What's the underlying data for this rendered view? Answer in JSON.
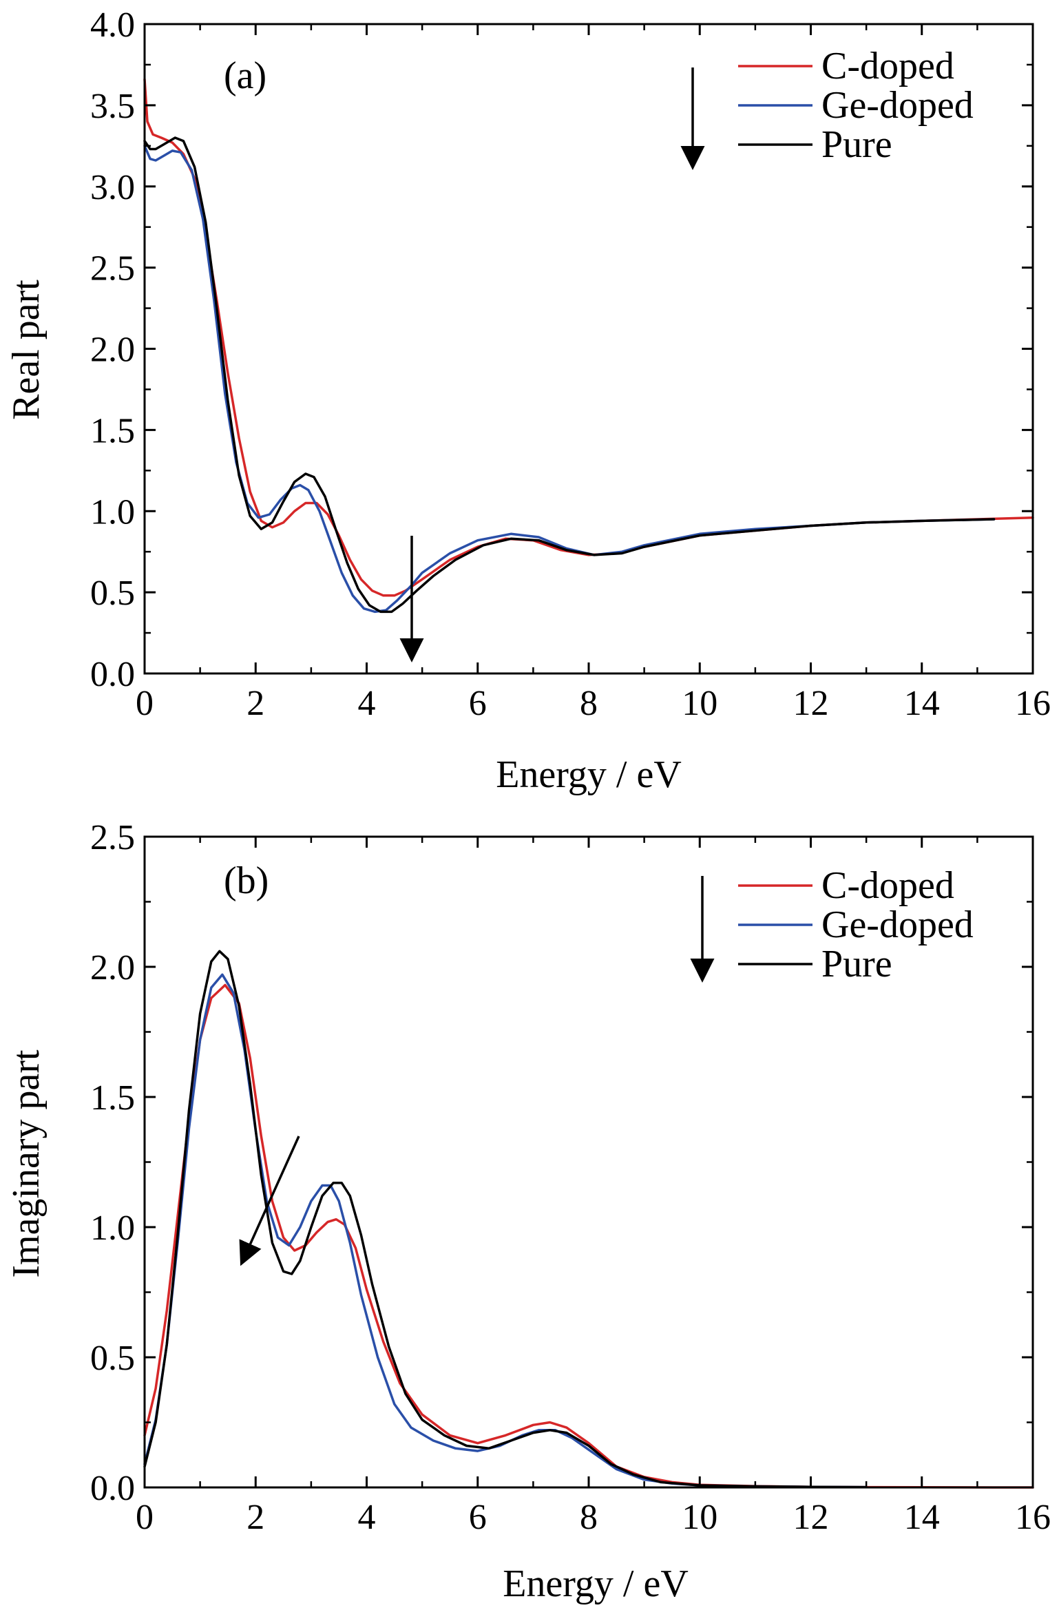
{
  "colors": {
    "c_doped": "#d62728",
    "ge_doped": "#2a4fa8",
    "pure": "#000000"
  },
  "chart_data": [
    {
      "type": "line",
      "panel_label": "(a)",
      "xlabel": "Energy / eV",
      "ylabel": "Real part",
      "xlim": [
        0,
        16
      ],
      "ylim": [
        0,
        4.0
      ],
      "x_ticks": [
        "0",
        "2",
        "4",
        "6",
        "8",
        "10",
        "12",
        "14",
        "16"
      ],
      "y_ticks": [
        "0.0",
        "0.5",
        "1.0",
        "1.5",
        "2.0",
        "2.5",
        "3.0",
        "3.5",
        "4.0"
      ],
      "legend_position": "top-right",
      "series": [
        {
          "name": "C-doped",
          "color": "#d62728",
          "points": [
            [
              0,
              3.66
            ],
            [
              0.05,
              3.4
            ],
            [
              0.15,
              3.32
            ],
            [
              0.3,
              3.3
            ],
            [
              0.5,
              3.27
            ],
            [
              0.7,
              3.2
            ],
            [
              0.9,
              3.05
            ],
            [
              1.1,
              2.72
            ],
            [
              1.3,
              2.3
            ],
            [
              1.5,
              1.85
            ],
            [
              1.7,
              1.45
            ],
            [
              1.9,
              1.12
            ],
            [
              2.1,
              0.94
            ],
            [
              2.3,
              0.9
            ],
            [
              2.5,
              0.93
            ],
            [
              2.7,
              1.0
            ],
            [
              2.9,
              1.05
            ],
            [
              3.1,
              1.05
            ],
            [
              3.3,
              0.98
            ],
            [
              3.5,
              0.85
            ],
            [
              3.7,
              0.7
            ],
            [
              3.9,
              0.58
            ],
            [
              4.1,
              0.51
            ],
            [
              4.3,
              0.48
            ],
            [
              4.5,
              0.48
            ],
            [
              4.7,
              0.51
            ],
            [
              5.0,
              0.58
            ],
            [
              5.5,
              0.7
            ],
            [
              6.0,
              0.78
            ],
            [
              6.5,
              0.83
            ],
            [
              7.0,
              0.82
            ],
            [
              7.5,
              0.76
            ],
            [
              8.0,
              0.73
            ],
            [
              8.5,
              0.74
            ],
            [
              9.0,
              0.78
            ],
            [
              10.0,
              0.85
            ],
            [
              11.0,
              0.88
            ],
            [
              12.0,
              0.91
            ],
            [
              13.0,
              0.93
            ],
            [
              14.0,
              0.94
            ],
            [
              15.0,
              0.95
            ],
            [
              16.0,
              0.96
            ]
          ]
        },
        {
          "name": "Ge-doped",
          "color": "#2a4fa8",
          "points": [
            [
              0,
              3.25
            ],
            [
              0.1,
              3.17
            ],
            [
              0.2,
              3.16
            ],
            [
              0.35,
              3.19
            ],
            [
              0.5,
              3.22
            ],
            [
              0.65,
              3.21
            ],
            [
              0.85,
              3.1
            ],
            [
              1.05,
              2.8
            ],
            [
              1.25,
              2.3
            ],
            [
              1.45,
              1.72
            ],
            [
              1.65,
              1.3
            ],
            [
              1.85,
              1.05
            ],
            [
              2.05,
              0.96
            ],
            [
              2.25,
              0.98
            ],
            [
              2.45,
              1.07
            ],
            [
              2.65,
              1.14
            ],
            [
              2.8,
              1.16
            ],
            [
              2.95,
              1.13
            ],
            [
              3.15,
              1.0
            ],
            [
              3.35,
              0.81
            ],
            [
              3.55,
              0.62
            ],
            [
              3.75,
              0.48
            ],
            [
              3.95,
              0.4
            ],
            [
              4.15,
              0.38
            ],
            [
              4.35,
              0.39
            ],
            [
              4.55,
              0.45
            ],
            [
              4.8,
              0.54
            ],
            [
              5.0,
              0.62
            ],
            [
              5.5,
              0.74
            ],
            [
              6.0,
              0.82
            ],
            [
              6.6,
              0.86
            ],
            [
              7.1,
              0.84
            ],
            [
              7.6,
              0.77
            ],
            [
              8.1,
              0.73
            ],
            [
              8.6,
              0.75
            ],
            [
              9.0,
              0.79
            ],
            [
              10.0,
              0.86
            ],
            [
              11.0,
              0.89
            ],
            [
              12.0,
              0.91
            ],
            [
              13.0,
              0.93
            ],
            [
              14.0,
              0.94
            ],
            [
              15.3,
              0.95
            ]
          ]
        },
        {
          "name": "Pure",
          "color": "#000000",
          "points": [
            [
              0,
              3.28
            ],
            [
              0.1,
              3.23
            ],
            [
              0.2,
              3.23
            ],
            [
              0.35,
              3.26
            ],
            [
              0.55,
              3.3
            ],
            [
              0.7,
              3.28
            ],
            [
              0.9,
              3.12
            ],
            [
              1.1,
              2.78
            ],
            [
              1.3,
              2.25
            ],
            [
              1.5,
              1.68
            ],
            [
              1.7,
              1.22
            ],
            [
              1.9,
              0.97
            ],
            [
              2.1,
              0.89
            ],
            [
              2.3,
              0.93
            ],
            [
              2.5,
              1.06
            ],
            [
              2.7,
              1.18
            ],
            [
              2.9,
              1.23
            ],
            [
              3.05,
              1.21
            ],
            [
              3.25,
              1.09
            ],
            [
              3.45,
              0.88
            ],
            [
              3.65,
              0.68
            ],
            [
              3.85,
              0.52
            ],
            [
              4.05,
              0.42
            ],
            [
              4.25,
              0.38
            ],
            [
              4.45,
              0.38
            ],
            [
              4.65,
              0.43
            ],
            [
              4.9,
              0.51
            ],
            [
              5.2,
              0.6
            ],
            [
              5.6,
              0.7
            ],
            [
              6.1,
              0.79
            ],
            [
              6.6,
              0.83
            ],
            [
              7.1,
              0.82
            ],
            [
              7.6,
              0.76
            ],
            [
              8.1,
              0.73
            ],
            [
              8.6,
              0.74
            ],
            [
              9.0,
              0.78
            ],
            [
              10.0,
              0.85
            ],
            [
              11.0,
              0.88
            ],
            [
              12.0,
              0.91
            ],
            [
              13.0,
              0.93
            ],
            [
              14.0,
              0.94
            ],
            [
              15.3,
              0.95
            ]
          ]
        }
      ]
    },
    {
      "type": "line",
      "panel_label": "(b)",
      "xlabel": "Energy / eV",
      "ylabel": "Imaginary part",
      "xlim": [
        0,
        16
      ],
      "ylim": [
        0,
        2.5
      ],
      "x_ticks": [
        "0",
        "2",
        "4",
        "6",
        "8",
        "10",
        "12",
        "14",
        "16"
      ],
      "y_ticks": [
        "0.0",
        "0.5",
        "1.0",
        "1.5",
        "2.0",
        "2.5"
      ],
      "legend_position": "top-right",
      "series": [
        {
          "name": "C-doped",
          "color": "#d62728",
          "points": [
            [
              0,
              0.2
            ],
            [
              0.2,
              0.38
            ],
            [
              0.4,
              0.68
            ],
            [
              0.6,
              1.05
            ],
            [
              0.8,
              1.42
            ],
            [
              1.0,
              1.72
            ],
            [
              1.2,
              1.88
            ],
            [
              1.45,
              1.93
            ],
            [
              1.7,
              1.86
            ],
            [
              1.9,
              1.65
            ],
            [
              2.1,
              1.35
            ],
            [
              2.3,
              1.1
            ],
            [
              2.5,
              0.96
            ],
            [
              2.7,
              0.91
            ],
            [
              2.9,
              0.93
            ],
            [
              3.1,
              0.98
            ],
            [
              3.3,
              1.02
            ],
            [
              3.45,
              1.03
            ],
            [
              3.6,
              1.01
            ],
            [
              3.8,
              0.92
            ],
            [
              4.0,
              0.76
            ],
            [
              4.3,
              0.56
            ],
            [
              4.6,
              0.4
            ],
            [
              5.0,
              0.28
            ],
            [
              5.5,
              0.2
            ],
            [
              6.0,
              0.17
            ],
            [
              6.5,
              0.2
            ],
            [
              7.0,
              0.24
            ],
            [
              7.3,
              0.25
            ],
            [
              7.6,
              0.23
            ],
            [
              8.0,
              0.17
            ],
            [
              8.5,
              0.08
            ],
            [
              9.0,
              0.04
            ],
            [
              9.5,
              0.02
            ],
            [
              10.0,
              0.01
            ],
            [
              11.0,
              0.005
            ],
            [
              12.0,
              0.002
            ],
            [
              13.0,
              0.001
            ],
            [
              15.3,
              0.0
            ],
            [
              16.0,
              0.0
            ]
          ]
        },
        {
          "name": "Ge-doped",
          "color": "#2a4fa8",
          "points": [
            [
              0,
              0.09
            ],
            [
              0.2,
              0.26
            ],
            [
              0.4,
              0.55
            ],
            [
              0.6,
              0.95
            ],
            [
              0.8,
              1.38
            ],
            [
              1.0,
              1.72
            ],
            [
              1.2,
              1.92
            ],
            [
              1.4,
              1.97
            ],
            [
              1.6,
              1.9
            ],
            [
              1.8,
              1.68
            ],
            [
              2.0,
              1.37
            ],
            [
              2.2,
              1.1
            ],
            [
              2.4,
              0.96
            ],
            [
              2.6,
              0.93
            ],
            [
              2.8,
              1.0
            ],
            [
              3.0,
              1.1
            ],
            [
              3.2,
              1.16
            ],
            [
              3.35,
              1.16
            ],
            [
              3.5,
              1.1
            ],
            [
              3.7,
              0.94
            ],
            [
              3.9,
              0.74
            ],
            [
              4.2,
              0.5
            ],
            [
              4.5,
              0.32
            ],
            [
              4.8,
              0.23
            ],
            [
              5.2,
              0.18
            ],
            [
              5.6,
              0.15
            ],
            [
              6.0,
              0.14
            ],
            [
              6.4,
              0.16
            ],
            [
              6.8,
              0.2
            ],
            [
              7.1,
              0.22
            ],
            [
              7.4,
              0.22
            ],
            [
              7.7,
              0.19
            ],
            [
              8.1,
              0.13
            ],
            [
              8.5,
              0.07
            ],
            [
              9.0,
              0.03
            ],
            [
              9.5,
              0.015
            ],
            [
              10.0,
              0.008
            ],
            [
              11.0,
              0.004
            ],
            [
              12.0,
              0.002
            ],
            [
              13.0,
              0.001
            ]
          ]
        },
        {
          "name": "Pure",
          "color": "#000000",
          "points": [
            [
              0,
              0.08
            ],
            [
              0.2,
              0.25
            ],
            [
              0.4,
              0.55
            ],
            [
              0.6,
              0.98
            ],
            [
              0.8,
              1.45
            ],
            [
              1.0,
              1.82
            ],
            [
              1.2,
              2.02
            ],
            [
              1.35,
              2.06
            ],
            [
              1.5,
              2.03
            ],
            [
              1.7,
              1.85
            ],
            [
              1.9,
              1.55
            ],
            [
              2.1,
              1.2
            ],
            [
              2.3,
              0.94
            ],
            [
              2.5,
              0.83
            ],
            [
              2.65,
              0.82
            ],
            [
              2.8,
              0.87
            ],
            [
              3.0,
              1.0
            ],
            [
              3.2,
              1.12
            ],
            [
              3.4,
              1.17
            ],
            [
              3.55,
              1.17
            ],
            [
              3.7,
              1.12
            ],
            [
              3.9,
              0.97
            ],
            [
              4.1,
              0.78
            ],
            [
              4.4,
              0.54
            ],
            [
              4.7,
              0.36
            ],
            [
              5.0,
              0.26
            ],
            [
              5.4,
              0.2
            ],
            [
              5.8,
              0.16
            ],
            [
              6.2,
              0.15
            ],
            [
              6.6,
              0.18
            ],
            [
              7.0,
              0.21
            ],
            [
              7.3,
              0.22
            ],
            [
              7.6,
              0.21
            ],
            [
              8.0,
              0.16
            ],
            [
              8.4,
              0.09
            ],
            [
              8.8,
              0.05
            ],
            [
              9.3,
              0.02
            ],
            [
              10.0,
              0.008
            ],
            [
              11.0,
              0.004
            ],
            [
              12.0,
              0.002
            ],
            [
              13.0,
              0.001
            ]
          ]
        }
      ]
    }
  ]
}
